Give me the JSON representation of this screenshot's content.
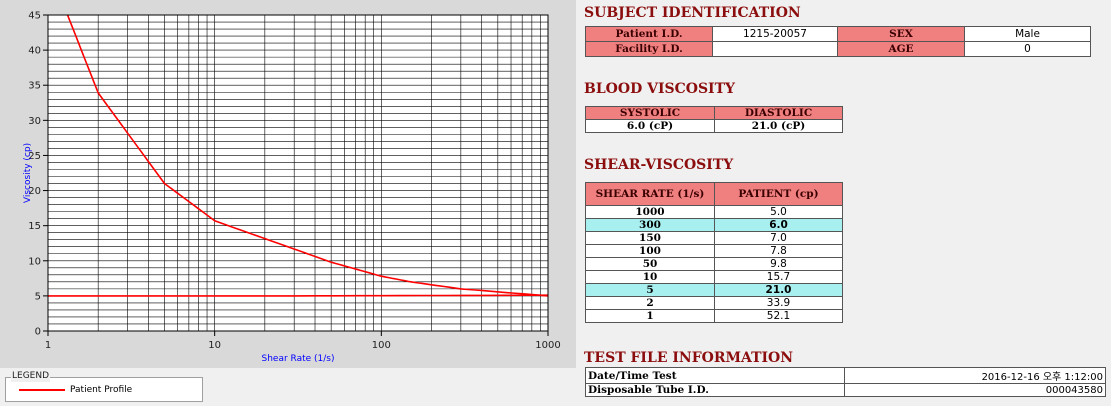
{
  "chart_data": {
    "type": "line",
    "xscale": "log",
    "xlabel": "Shear Rate (1/s)",
    "ylabel": "Viscosity (cp)",
    "xlim": [
      1,
      1000
    ],
    "ylim": [
      0,
      45
    ],
    "x_ticks": [
      "1",
      "10",
      "100",
      "1000"
    ],
    "y_ticks": [
      "0",
      "5",
      "10",
      "15",
      "20",
      "25",
      "30",
      "35",
      "40",
      "45"
    ],
    "grid": true,
    "series": [
      {
        "name": "Patient Profile",
        "color": "#ff0000",
        "x": [
          1,
          2,
          5,
          10,
          50,
          100,
          150,
          300,
          1000
        ],
        "y": [
          52.1,
          33.9,
          21.0,
          15.7,
          9.8,
          7.8,
          7.0,
          6.0,
          5.0
        ]
      },
      {
        "color": "#ff0000",
        "x": [
          1,
          30,
          1000
        ],
        "y": [
          5.0,
          5.0,
          5.1
        ]
      }
    ]
  },
  "legend": {
    "title": "LEGEND",
    "label": "Patient Profile"
  },
  "subject": {
    "title": "SUBJECT IDENTIFICATION",
    "patient_id_label": "Patient I.D.",
    "patient_id": "1215-20057",
    "sex_label": "SEX",
    "sex": "Male",
    "facility_label": "Facility I.D.",
    "facility": "",
    "age_label": "AGE",
    "age": "0"
  },
  "blood": {
    "title": "BLOOD VISCOSITY",
    "systolic_label": "SYSTOLIC",
    "diastolic_label": "DIASTOLIC",
    "systolic": "6.0 (cP)",
    "diastolic": "21.0 (cP)"
  },
  "shear": {
    "title": "SHEAR-VISCOSITY",
    "col_rate": "SHEAR RATE (1/s)",
    "col_patient": "PATIENT (cp)",
    "rows": [
      {
        "rate": "1000",
        "value": "5.0",
        "hl": false
      },
      {
        "rate": "300",
        "value": "6.0",
        "hl": true
      },
      {
        "rate": "150",
        "value": "7.0",
        "hl": false
      },
      {
        "rate": "100",
        "value": "7.8",
        "hl": false
      },
      {
        "rate": "50",
        "value": "9.8",
        "hl": false
      },
      {
        "rate": "10",
        "value": "15.7",
        "hl": false
      },
      {
        "rate": "5",
        "value": "21.0",
        "hl": true
      },
      {
        "rate": "2",
        "value": "33.9",
        "hl": false
      },
      {
        "rate": "1",
        "value": "52.1",
        "hl": false
      }
    ]
  },
  "testfile": {
    "title": "TEST FILE INFORMATION",
    "date_label": "Date/Time Test",
    "date": "2016-12-16  오후 1:12:00",
    "tube_label": "Disposable Tube I.D.",
    "tube": "000043580"
  }
}
